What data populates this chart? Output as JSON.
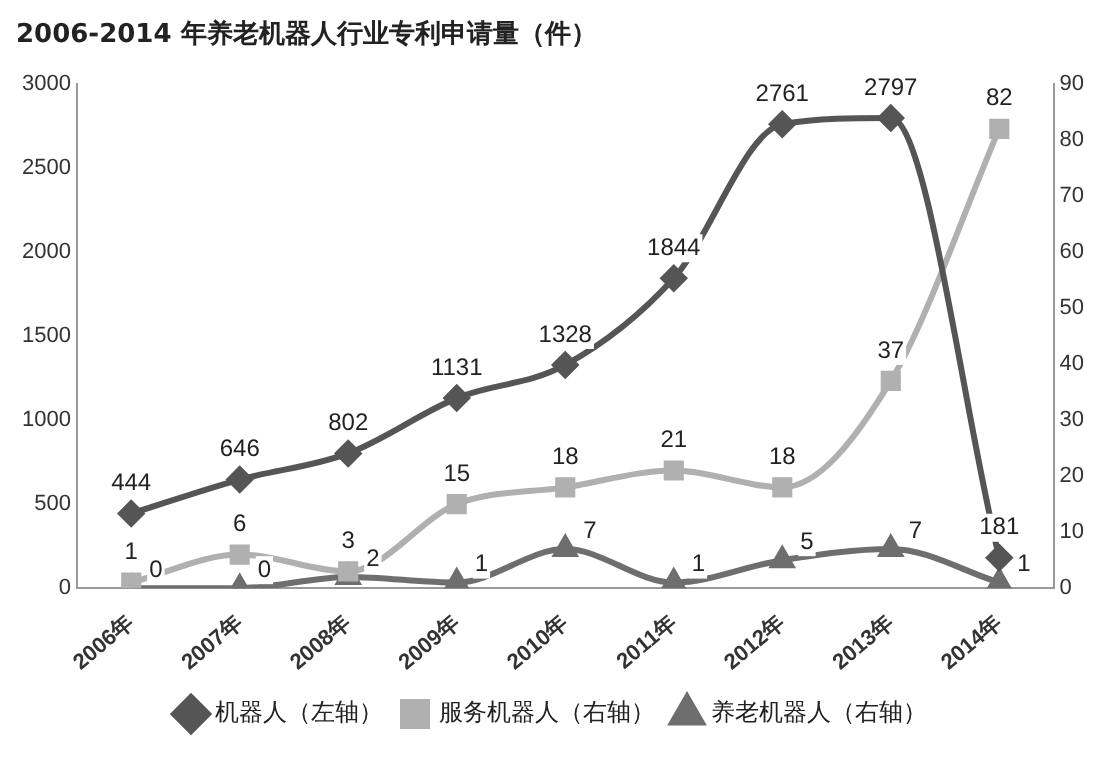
{
  "chart_data": {
    "type": "line",
    "title": "2006-2014 年养老机器人行业专利申请量（件）",
    "categories": [
      "2006年",
      "2007年",
      "2008年",
      "2009年",
      "2010年",
      "2011年",
      "2012年",
      "2013年",
      "2014年"
    ],
    "series": [
      {
        "name": "机器人（左轴）",
        "color": "#555555",
        "marker": "diamond",
        "values": [
          444,
          646,
          802,
          1131,
          1328,
          1844,
          2761,
          2797,
          181
        ]
      },
      {
        "name": "服务机器人（右轴）",
        "color": "#b0b0b0",
        "marker": "square",
        "axis": "y2",
        "values": [
          1,
          6,
          3,
          15,
          18,
          21,
          18,
          37,
          82
        ]
      },
      {
        "name": "养老机器人（右轴）",
        "color": "#6e6e6e",
        "marker": "triangle",
        "axis": "y2",
        "values": [
          0,
          0,
          2,
          1,
          7,
          1,
          5,
          7,
          1
        ]
      }
    ],
    "ylim": [
      0,
      3000
    ],
    "yticks": [
      0,
      500,
      1000,
      1500,
      2000,
      2500,
      3000
    ],
    "y2lim": [
      0,
      90
    ],
    "y2ticks": [
      0,
      10,
      20,
      30,
      40,
      50,
      60,
      70,
      80,
      90
    ],
    "data_labels": true,
    "legend": "bottom",
    "grid": false
  }
}
